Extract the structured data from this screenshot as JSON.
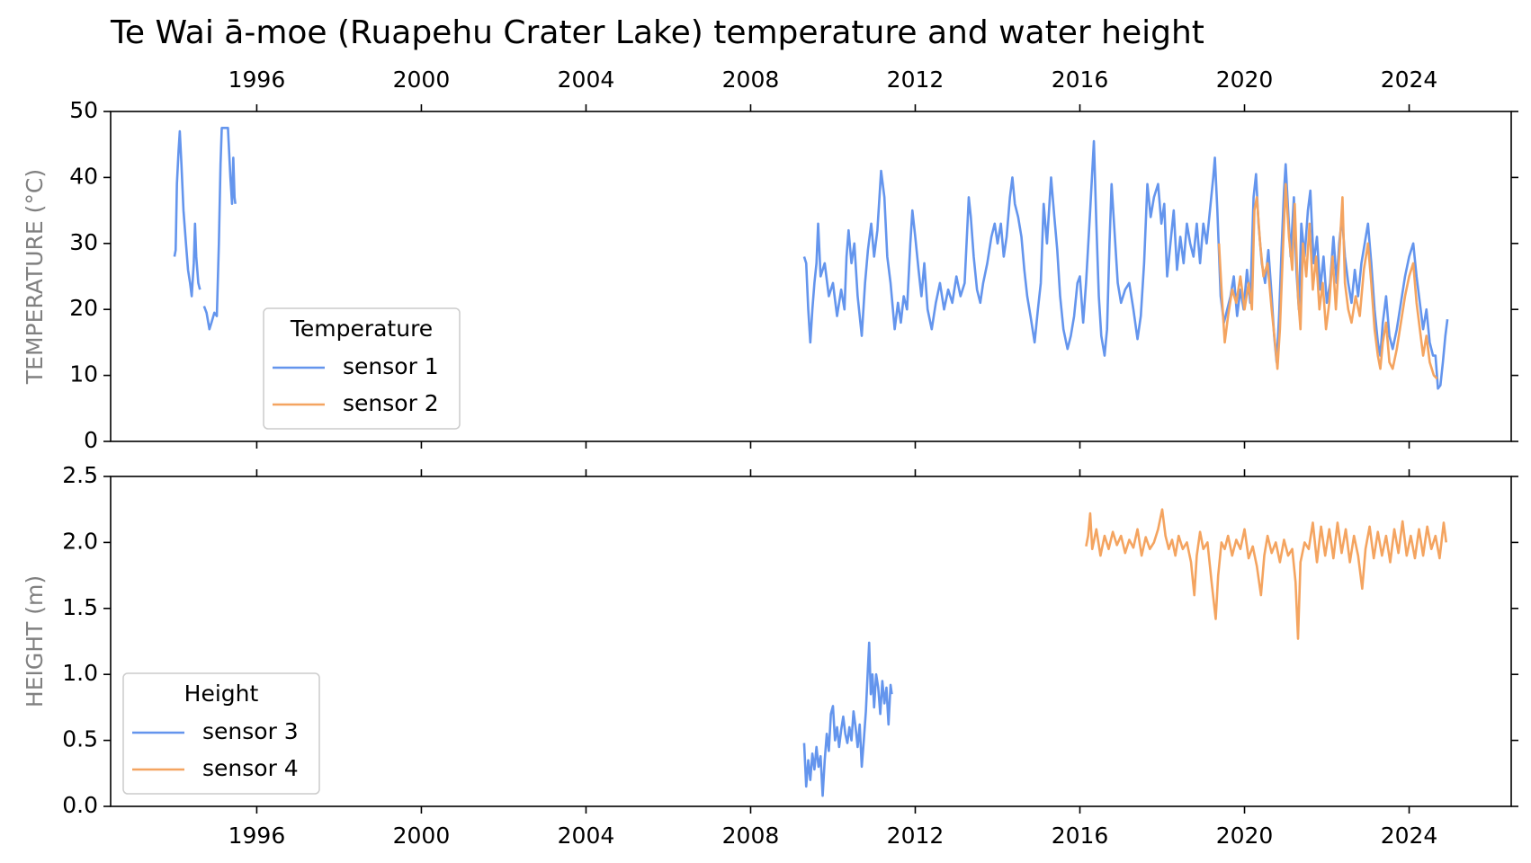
{
  "chart_data": [
    {
      "type": "line",
      "title": "Te Wai ā-moe (Ruapehu Crater Lake) temperature and water height",
      "ylabel": "TEMPERATURE (°C)",
      "legend_title": "Temperature",
      "legend_loc": "lower left",
      "xlim": [
        1992.45,
        2026.48
      ],
      "xticks": [
        1996,
        2000,
        2004,
        2008,
        2012,
        2016,
        2020,
        2024
      ],
      "xtick_side": "top",
      "ylim": [
        0,
        50
      ],
      "yticks": [
        0,
        10,
        20,
        30,
        40,
        50
      ],
      "series": [
        {
          "name": "sensor 1",
          "color": "#6495ED",
          "x": [
            1994.0,
            1994.03,
            1994.06,
            1994.1,
            1994.13,
            1994.17,
            1994.22,
            1994.28,
            1994.33,
            1994.38,
            1994.42,
            1994.47,
            1994.5,
            1994.53,
            1994.58,
            1994.62,
            1994.67,
            1994.72,
            1994.78,
            1994.85,
            1994.9,
            1994.97,
            1995.03,
            1995.08,
            1995.12,
            1995.15,
            1995.3,
            1995.36,
            1995.4,
            1995.43,
            1995.46,
            1995.48,
            2002.0,
            2009.3,
            2009.35,
            2009.4,
            2009.45,
            2009.5,
            2009.55,
            2009.6,
            2009.64,
            2009.7,
            2009.8,
            2009.9,
            2010.0,
            2010.1,
            2010.2,
            2010.28,
            2010.33,
            2010.38,
            2010.45,
            2010.52,
            2010.6,
            2010.7,
            2010.78,
            2010.85,
            2010.93,
            2011.0,
            2011.08,
            2011.17,
            2011.25,
            2011.32,
            2011.4,
            2011.5,
            2011.58,
            2011.65,
            2011.72,
            2011.8,
            2011.88,
            2011.93,
            2012.0,
            2012.08,
            2012.15,
            2012.22,
            2012.3,
            2012.4,
            2012.5,
            2012.6,
            2012.7,
            2012.8,
            2012.9,
            2013.0,
            2013.1,
            2013.2,
            2013.3,
            2013.35,
            2013.42,
            2013.5,
            2013.58,
            2013.65,
            2013.75,
            2013.85,
            2013.93,
            2014.0,
            2014.08,
            2014.15,
            2014.22,
            2014.3,
            2014.36,
            2014.42,
            2014.5,
            2014.58,
            2014.65,
            2014.72,
            2014.8,
            2014.9,
            2014.98,
            2015.05,
            2015.12,
            2015.2,
            2015.3,
            2015.38,
            2015.45,
            2015.52,
            2015.6,
            2015.7,
            2015.78,
            2015.86,
            2015.94,
            2016.0,
            2016.08,
            2016.15,
            2016.25,
            2016.34,
            2016.4,
            2016.46,
            2016.52,
            2016.6,
            2016.66,
            2016.72,
            2016.77,
            2016.84,
            2016.92,
            2017.0,
            2017.1,
            2017.2,
            2017.3,
            2017.4,
            2017.48,
            2017.56,
            2017.64,
            2017.72,
            2017.8,
            2017.9,
            2017.98,
            2018.05,
            2018.12,
            2018.2,
            2018.28,
            2018.36,
            2018.44,
            2018.52,
            2018.6,
            2018.68,
            2018.76,
            2018.84,
            2018.92,
            2019.0,
            2019.08,
            2019.16,
            2019.24,
            2019.28,
            2019.34,
            2019.42,
            2019.5,
            2019.58,
            2019.66,
            2019.74,
            2019.82,
            2019.9,
            2019.98,
            2020.06,
            2020.14,
            2020.22,
            2020.28,
            2020.34,
            2020.42,
            2020.5,
            2020.58,
            2020.66,
            2020.72,
            2020.78,
            2020.84,
            2020.9,
            2020.96,
            2021.0,
            2021.06,
            2021.12,
            2021.2,
            2021.26,
            2021.32,
            2021.38,
            2021.46,
            2021.54,
            2021.6,
            2021.68,
            2021.76,
            2021.84,
            2021.92,
            2022.0,
            2022.08,
            2022.16,
            2022.24,
            2022.3,
            2022.37,
            2022.44,
            2022.52,
            2022.6,
            2022.68,
            2022.76,
            2022.84,
            2022.92,
            2023.0,
            2023.08,
            2023.16,
            2023.24,
            2023.3,
            2023.36,
            2023.44,
            2023.52,
            2023.6,
            2023.7,
            2023.8,
            2023.9,
            2024.0,
            2024.1,
            2024.18,
            2024.26,
            2024.34,
            2024.42,
            2024.5,
            2024.58,
            2024.64,
            2024.7,
            2024.76,
            2024.82,
            2024.88,
            2024.93
          ],
          "values": [
            28,
            29,
            39,
            44,
            47,
            42,
            35,
            30,
            26,
            24,
            22,
            27,
            33,
            28,
            24,
            23,
            null,
            20.5,
            19.5,
            17,
            18,
            19.5,
            19,
            30,
            42,
            47.5,
            47.5,
            40,
            36,
            43,
            37,
            36,
            null,
            28,
            27,
            20,
            15,
            20,
            24,
            27,
            33,
            25,
            27,
            22,
            24,
            19,
            23,
            20,
            28,
            32,
            27,
            30,
            22,
            16,
            24,
            29,
            33,
            28,
            32,
            41,
            37,
            28,
            24,
            17,
            21,
            18,
            22,
            20,
            30,
            35,
            31,
            26,
            22,
            27,
            20,
            17,
            21,
            24,
            20,
            23,
            21,
            25,
            22,
            24,
            37,
            34,
            28,
            23,
            21,
            24,
            27,
            31,
            33,
            30,
            33,
            28,
            31,
            37,
            40,
            36,
            34,
            31,
            26,
            22,
            19,
            15,
            20,
            24,
            36,
            30,
            40,
            34,
            29,
            22,
            17,
            14,
            16,
            19,
            24,
            25,
            18,
            24,
            35,
            45.5,
            33,
            22,
            16,
            13,
            17,
            30,
            39,
            32,
            24,
            21,
            23,
            24,
            20,
            15.5,
            19,
            27,
            39,
            34,
            37,
            39,
            33,
            36,
            25,
            30,
            35,
            26,
            31,
            27,
            33,
            30,
            28,
            33,
            27,
            33,
            30,
            35,
            40,
            43,
            35,
            22,
            18,
            20,
            22,
            25,
            19,
            23,
            20,
            26,
            21,
            37,
            40.5,
            33,
            27,
            24,
            29,
            22,
            16,
            12,
            19,
            29,
            38,
            42,
            35,
            28,
            37,
            26,
            20,
            33,
            28,
            35,
            38,
            27,
            31,
            23,
            28,
            21,
            24,
            31,
            24,
            30,
            34,
            28,
            24,
            21,
            26,
            22,
            27,
            30,
            33,
            27,
            20,
            15,
            13,
            18,
            22,
            16,
            14,
            17,
            21,
            25,
            28,
            30,
            25,
            21,
            17,
            20,
            15,
            13,
            13,
            8,
            8.5,
            12,
            16,
            18.5
          ]
        },
        {
          "name": "sensor 2",
          "color": "#F4A460",
          "x": [
            2019.38,
            2019.45,
            2019.52,
            2019.6,
            2019.7,
            2019.8,
            2019.9,
            2020.0,
            2020.1,
            2020.18,
            2020.24,
            2020.3,
            2020.38,
            2020.46,
            2020.56,
            2020.66,
            2020.74,
            2020.8,
            2020.86,
            2020.94,
            2021.0,
            2021.08,
            2021.16,
            2021.22,
            2021.3,
            2021.36,
            2021.42,
            2021.5,
            2021.58,
            2021.66,
            2021.74,
            2021.82,
            2021.9,
            2021.98,
            2022.06,
            2022.14,
            2022.22,
            2022.3,
            2022.38,
            2022.44,
            2022.52,
            2022.6,
            2022.7,
            2022.8,
            2022.9,
            2023.0,
            2023.08,
            2023.16,
            2023.24,
            2023.3,
            2023.36,
            2023.44,
            2023.52,
            2023.6,
            2023.7,
            2023.8,
            2023.9,
            2024.0,
            2024.1,
            2024.18,
            2024.26,
            2024.34,
            2024.42,
            2024.5,
            2024.6,
            2024.68
          ],
          "values": [
            30,
            22,
            15,
            19,
            23,
            21,
            25,
            20,
            24,
            20,
            35,
            37,
            30,
            25,
            27,
            20,
            15,
            11,
            17,
            30,
            39,
            31,
            26,
            36,
            22,
            17,
            30,
            25,
            33,
            23,
            28,
            20,
            24,
            17,
            21,
            28,
            20,
            28,
            37,
            24,
            20,
            18,
            22,
            19,
            26,
            30,
            24,
            17,
            13,
            11,
            15,
            18,
            12,
            11,
            14,
            18,
            22,
            25,
            27,
            21,
            17,
            13,
            16,
            12,
            10,
            9.5
          ]
        }
      ]
    },
    {
      "type": "line",
      "ylabel": "HEIGHT (m)",
      "legend_title": "Height",
      "legend_loc": "lower left",
      "xlim": [
        1992.45,
        2026.48
      ],
      "xticks": [
        1996,
        2000,
        2004,
        2008,
        2012,
        2016,
        2020,
        2024
      ],
      "xtick_side": "bottom",
      "ylim": [
        0,
        2.5
      ],
      "yticks": [
        {
          "value": 0,
          "label": "0.0"
        },
        0.5,
        {
          "value": 1,
          "label": "1.0"
        },
        1.5,
        {
          "value": 2,
          "label": "2.0"
        },
        2.5
      ],
      "series": [
        {
          "name": "sensor 3",
          "color": "#6495ED",
          "x": [
            2009.3,
            2009.35,
            2009.4,
            2009.45,
            2009.5,
            2009.55,
            2009.6,
            2009.65,
            2009.7,
            2009.75,
            2009.8,
            2009.85,
            2009.9,
            2009.95,
            2010.0,
            2010.05,
            2010.1,
            2010.15,
            2010.2,
            2010.25,
            2010.3,
            2010.35,
            2010.4,
            2010.45,
            2010.5,
            2010.55,
            2010.6,
            2010.65,
            2010.7,
            2010.75,
            2010.8,
            2010.85,
            2010.88,
            2010.92,
            2010.96,
            2011.0,
            2011.05,
            2011.1,
            2011.15,
            2011.2,
            2011.25,
            2011.3,
            2011.35,
            2011.4,
            2011.43
          ],
          "values": [
            0.48,
            0.15,
            0.35,
            0.2,
            0.4,
            0.28,
            0.45,
            0.3,
            0.38,
            0.08,
            0.35,
            0.55,
            0.42,
            0.7,
            0.76,
            0.5,
            0.6,
            0.45,
            0.58,
            0.68,
            0.55,
            0.48,
            0.6,
            0.5,
            0.72,
            0.6,
            0.45,
            0.62,
            0.3,
            0.5,
            0.72,
            1.05,
            1.24,
            0.85,
            1.0,
            0.75,
            1.0,
            0.9,
            0.7,
            0.95,
            0.78,
            0.9,
            0.62,
            0.92,
            0.85
          ]
        },
        {
          "name": "sensor 4",
          "color": "#F4A460",
          "x": [
            2016.15,
            2016.2,
            2016.25,
            2016.3,
            2016.4,
            2016.5,
            2016.6,
            2016.7,
            2016.8,
            2016.9,
            2017.0,
            2017.1,
            2017.2,
            2017.3,
            2017.4,
            2017.5,
            2017.6,
            2017.7,
            2017.8,
            2017.9,
            2018.0,
            2018.08,
            2018.16,
            2018.24,
            2018.32,
            2018.4,
            2018.5,
            2018.6,
            2018.7,
            2018.78,
            2018.84,
            2018.92,
            2019.0,
            2019.1,
            2019.2,
            2019.3,
            2019.36,
            2019.44,
            2019.52,
            2019.6,
            2019.7,
            2019.8,
            2019.9,
            2020.0,
            2020.1,
            2020.2,
            2020.3,
            2020.4,
            2020.48,
            2020.56,
            2020.66,
            2020.76,
            2020.86,
            2020.96,
            2021.06,
            2021.16,
            2021.24,
            2021.3,
            2021.36,
            2021.46,
            2021.56,
            2021.66,
            2021.76,
            2021.86,
            2021.96,
            2022.06,
            2022.16,
            2022.26,
            2022.36,
            2022.46,
            2022.56,
            2022.66,
            2022.76,
            2022.86,
            2022.94,
            2023.04,
            2023.14,
            2023.24,
            2023.34,
            2023.44,
            2023.54,
            2023.64,
            2023.74,
            2023.84,
            2023.94,
            2024.04,
            2024.14,
            2024.24,
            2024.34,
            2024.44,
            2024.54,
            2024.64,
            2024.74,
            2024.84,
            2024.9
          ],
          "values": [
            1.97,
            2.05,
            2.22,
            1.95,
            2.1,
            1.9,
            2.05,
            1.95,
            2.08,
            1.98,
            2.05,
            1.92,
            2.02,
            1.96,
            2.1,
            1.9,
            2.04,
            1.95,
            2.0,
            2.1,
            2.25,
            2.05,
            1.95,
            2.02,
            1.9,
            2.05,
            1.95,
            2.0,
            1.85,
            1.6,
            1.9,
            2.08,
            1.95,
            2.0,
            1.7,
            1.42,
            1.75,
            2.0,
            1.95,
            2.05,
            1.9,
            2.02,
            1.95,
            2.1,
            1.88,
            1.97,
            1.82,
            1.6,
            1.9,
            2.05,
            1.92,
            2.0,
            1.85,
            2.02,
            1.9,
            1.95,
            1.7,
            1.27,
            1.85,
            2.0,
            1.95,
            2.15,
            1.85,
            2.12,
            1.9,
            2.1,
            1.88,
            2.15,
            1.92,
            2.1,
            1.85,
            2.05,
            1.9,
            1.65,
            1.95,
            2.12,
            1.88,
            2.08,
            1.9,
            2.05,
            1.85,
            2.1,
            1.92,
            2.16,
            1.9,
            2.05,
            1.88,
            2.1,
            1.9,
            2.12,
            1.95,
            2.05,
            1.88,
            2.15,
            2.0
          ]
        }
      ]
    }
  ]
}
